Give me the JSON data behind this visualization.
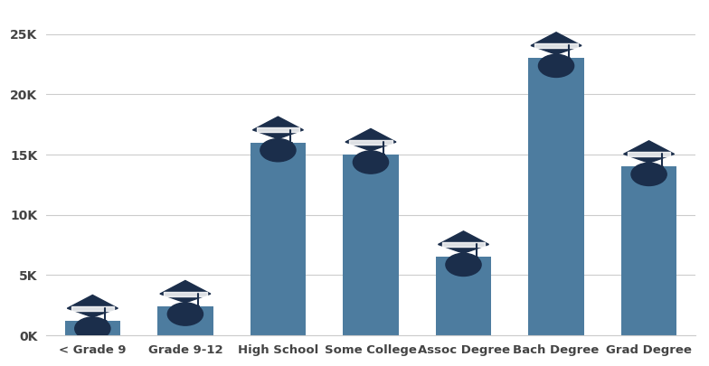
{
  "categories": [
    "< Grade 9",
    "Grade 9-12",
    "High School",
    "Some College",
    "Assoc Degree",
    "Bach Degree",
    "Grad Degree"
  ],
  "values": [
    1200,
    2400,
    16000,
    15000,
    6500,
    23000,
    14000
  ],
  "bar_color": "#4d7c9f",
  "cap_color": "#1b2e4b",
  "cap_white": "#ffffff",
  "background_color": "#ffffff",
  "grid_color": "#cccccc",
  "tick_label_color": "#444444",
  "ylim": [
    0,
    27000
  ],
  "yticks": [
    0,
    5000,
    10000,
    15000,
    20000,
    25000
  ],
  "ytick_labels": [
    "0K",
    "5K",
    "10K",
    "15K",
    "20K",
    "25K"
  ],
  "figsize": [
    7.84,
    4.05
  ],
  "dpi": 100
}
